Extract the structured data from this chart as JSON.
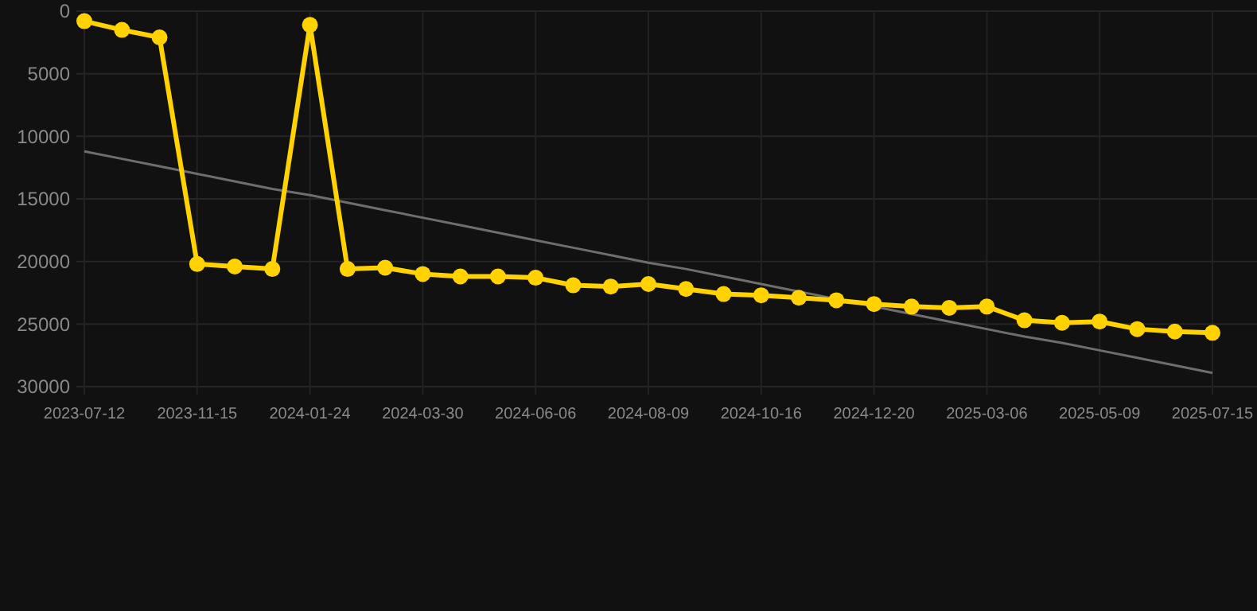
{
  "chart_data": {
    "type": "line",
    "categories": [
      "2023-07-12",
      null,
      null,
      "2023-11-15",
      null,
      null,
      "2024-01-24",
      null,
      null,
      "2024-03-30",
      null,
      null,
      "2024-06-06",
      null,
      null,
      "2024-08-09",
      null,
      null,
      "2024-10-16",
      null,
      null,
      "2024-12-20",
      null,
      null,
      "2025-03-06",
      null,
      null,
      "2025-05-09",
      null,
      null,
      "2025-07-15"
    ],
    "series": [
      {
        "color": "#ffd200",
        "marker": "circle",
        "values": [
          800,
          1500,
          2100,
          20200,
          20400,
          20600,
          1100,
          20600,
          20500,
          21000,
          21200,
          21200,
          21300,
          21900,
          22000,
          21800,
          22200,
          22600,
          22700,
          22900,
          23100,
          23400,
          23600,
          23700,
          23600,
          24700,
          24900,
          24800,
          25400,
          25600,
          25700
        ]
      },
      {
        "type": "line",
        "color": "#6e6e6e",
        "marker": "none",
        "values": [
          11200,
          11800,
          12400,
          13000,
          13600,
          14200,
          14700,
          15300,
          15900,
          16500,
          17100,
          17700,
          18300,
          18900,
          19500,
          20100,
          20600,
          21200,
          21800,
          22400,
          23000,
          23600,
          24200,
          24800,
          25400,
          26000,
          26500,
          27100,
          27700,
          28300,
          28900
        ]
      }
    ],
    "ylim": [
      30000,
      0
    ],
    "yticks": [
      0,
      5000,
      10000,
      15000,
      20000,
      25000,
      30000
    ],
    "grid": true
  }
}
